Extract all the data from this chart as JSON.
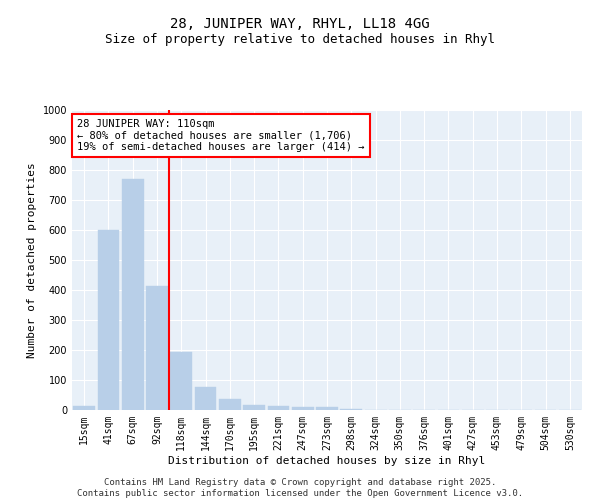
{
  "title_line1": "28, JUNIPER WAY, RHYL, LL18 4GG",
  "title_line2": "Size of property relative to detached houses in Rhyl",
  "xlabel": "Distribution of detached houses by size in Rhyl",
  "ylabel": "Number of detached properties",
  "categories": [
    "15sqm",
    "41sqm",
    "67sqm",
    "92sqm",
    "118sqm",
    "144sqm",
    "170sqm",
    "195sqm",
    "221sqm",
    "247sqm",
    "273sqm",
    "298sqm",
    "324sqm",
    "350sqm",
    "376sqm",
    "401sqm",
    "427sqm",
    "453sqm",
    "479sqm",
    "504sqm",
    "530sqm"
  ],
  "values": [
    13,
    600,
    770,
    415,
    192,
    78,
    38,
    18,
    14,
    11,
    11,
    5,
    0,
    0,
    0,
    0,
    0,
    0,
    0,
    0,
    0
  ],
  "bar_color": "#b8cfe8",
  "bar_edgecolor": "#b8cfe8",
  "vline_color": "red",
  "vline_pos": 3.5,
  "annotation_text": "28 JUNIPER WAY: 110sqm\n← 80% of detached houses are smaller (1,706)\n19% of semi-detached houses are larger (414) →",
  "annotation_box_facecolor": "white",
  "annotation_box_edgecolor": "red",
  "ylim": [
    0,
    1000
  ],
  "yticks": [
    0,
    100,
    200,
    300,
    400,
    500,
    600,
    700,
    800,
    900,
    1000
  ],
  "background_color": "#e8f0f8",
  "grid_color": "white",
  "title_fontsize": 10,
  "subtitle_fontsize": 9,
  "xlabel_fontsize": 8,
  "ylabel_fontsize": 8,
  "tick_fontsize": 7,
  "annotation_fontsize": 7.5,
  "footer_text": "Contains HM Land Registry data © Crown copyright and database right 2025.\nContains public sector information licensed under the Open Government Licence v3.0.",
  "footer_fontsize": 6.5
}
